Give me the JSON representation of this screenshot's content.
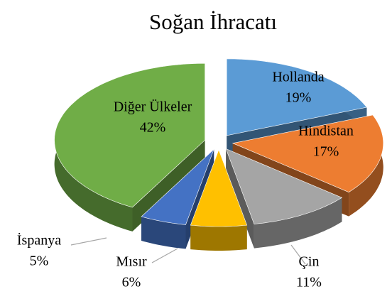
{
  "chart_data": {
    "type": "pie3d",
    "title": "Soğan İhracatı",
    "categories": [
      "Hollanda",
      "Hindistan",
      "Çin",
      "Mısır",
      "İspanya",
      "Diğer Ülkeler"
    ],
    "values": [
      19,
      17,
      11,
      6,
      5,
      42
    ],
    "value_labels": [
      "19%",
      "17%",
      "11%",
      "6%",
      "5%",
      "42%"
    ],
    "colors": [
      "#5b9bd5",
      "#ed7d31",
      "#a5a5a5",
      "#ffc000",
      "#4472c4",
      "#70ad47"
    ]
  }
}
